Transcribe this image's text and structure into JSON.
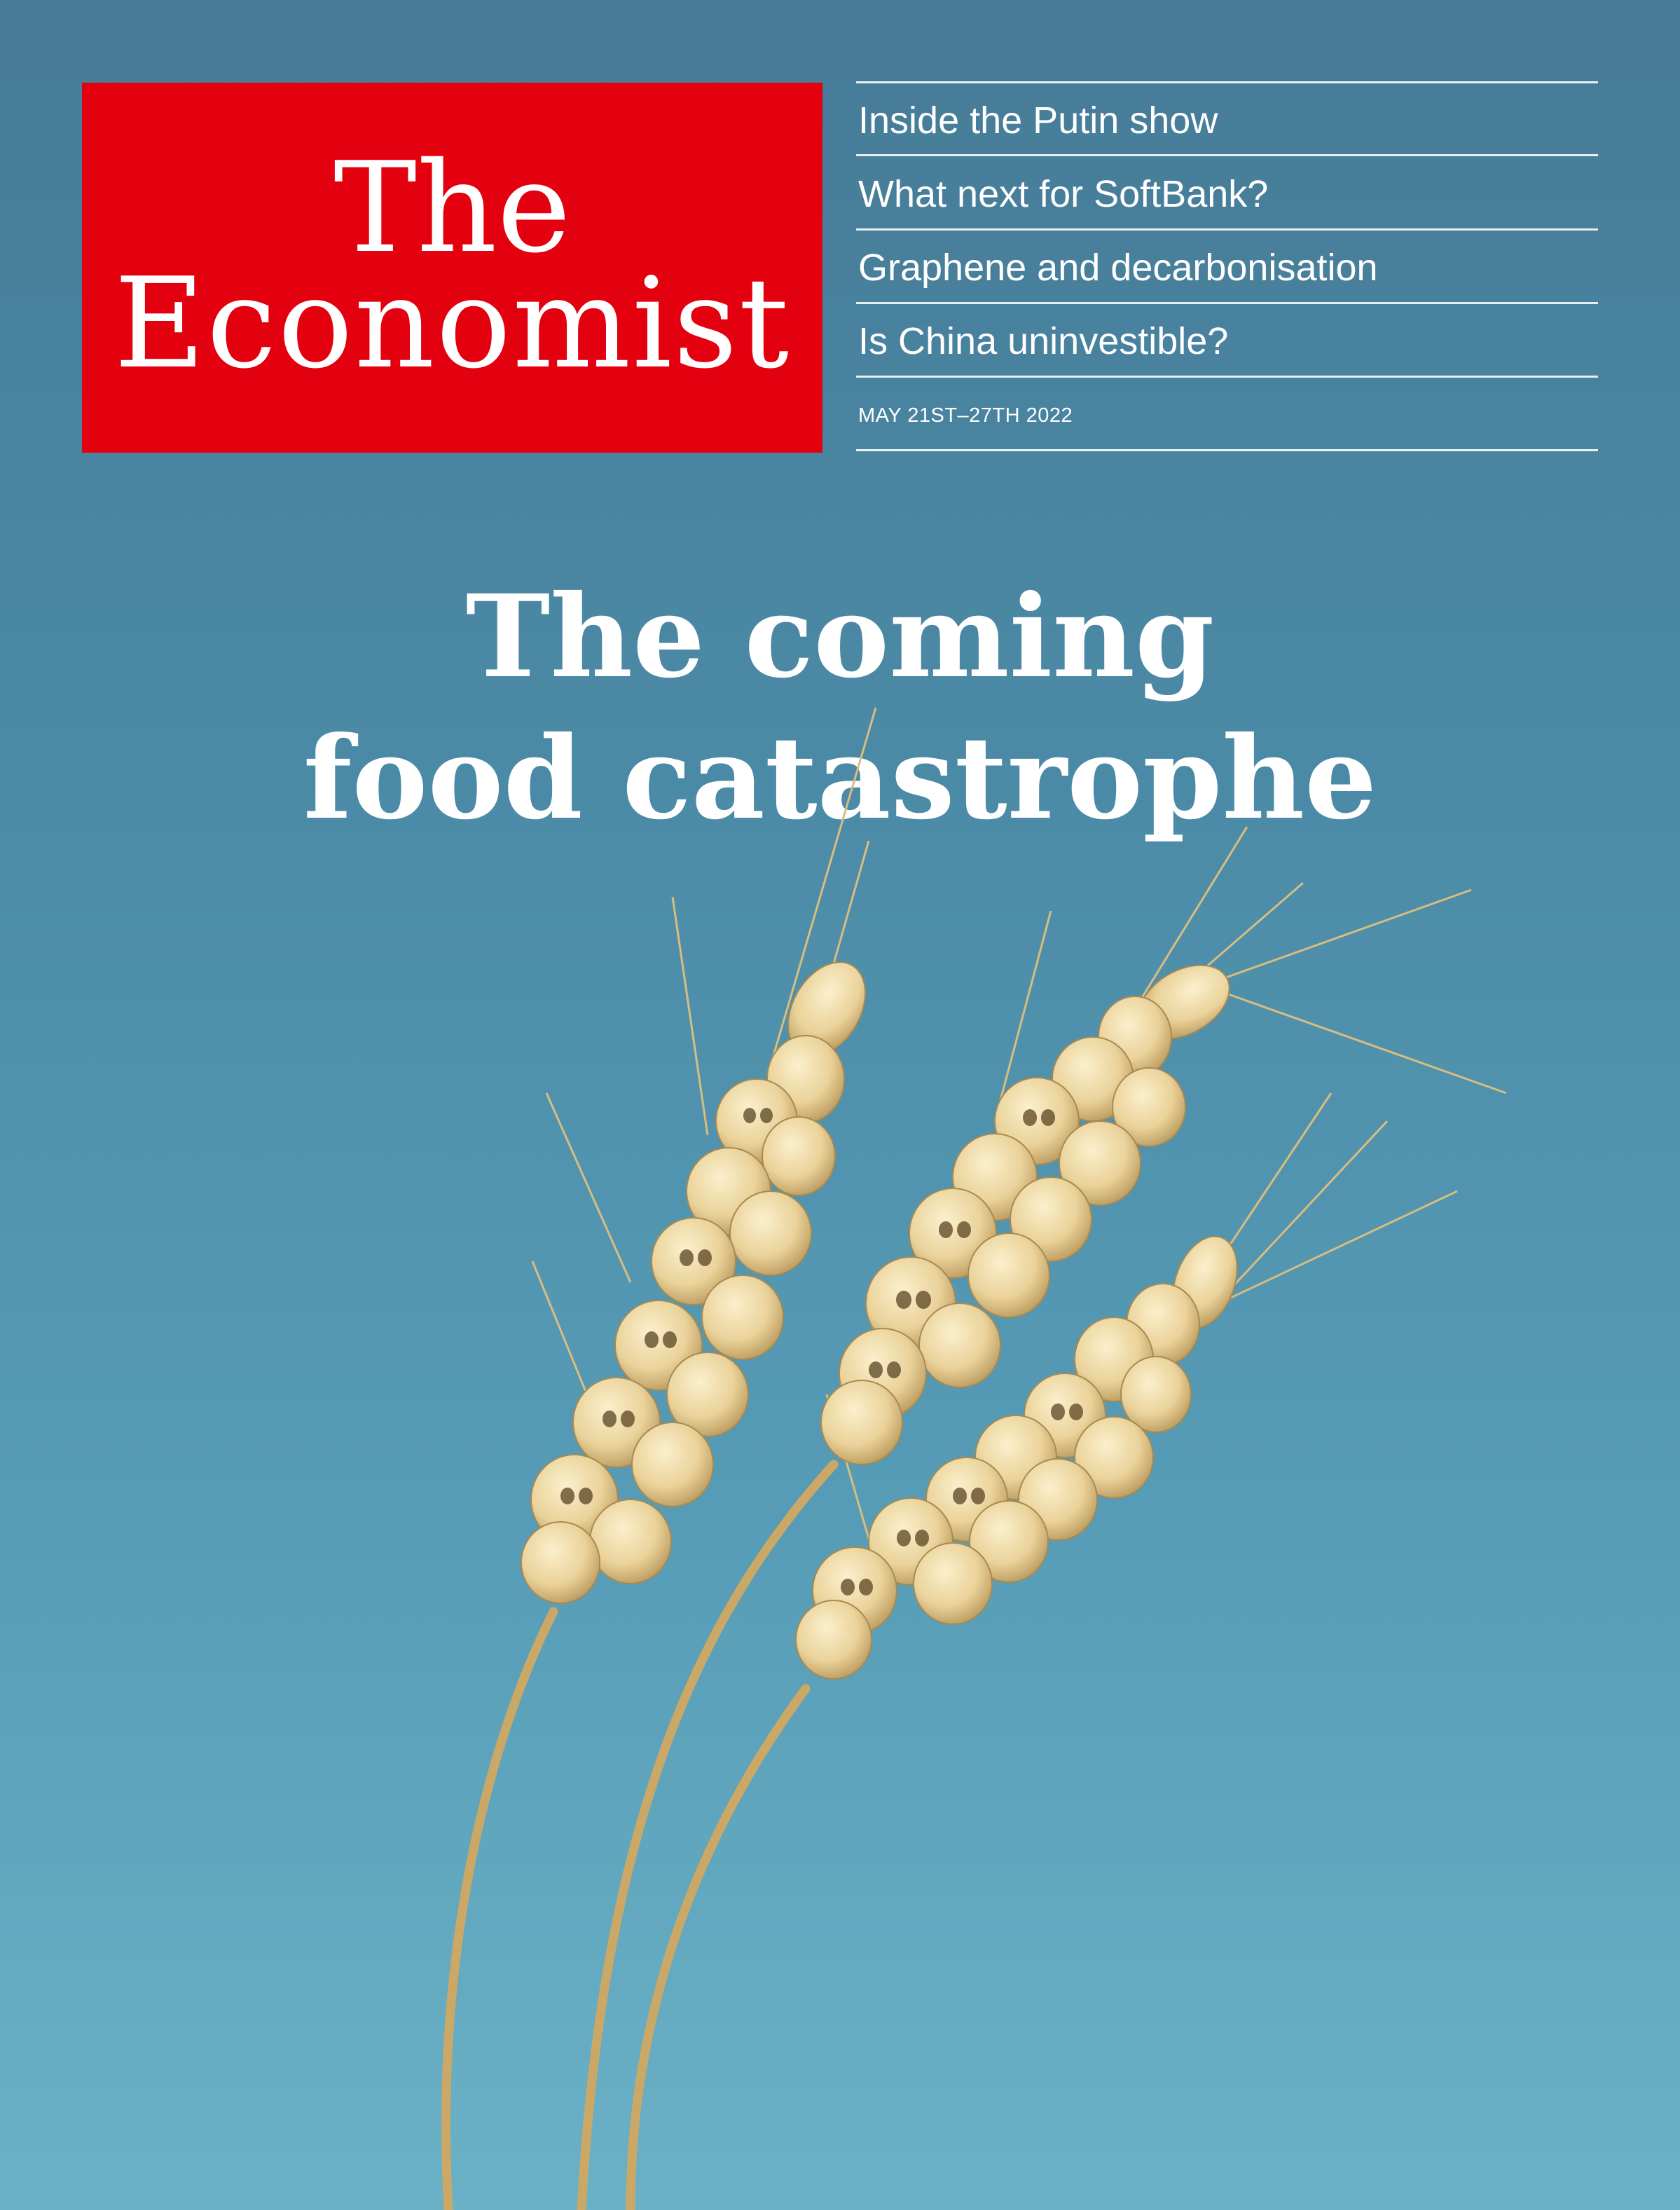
{
  "masthead": {
    "line1": "The",
    "line2": "Economist"
  },
  "teasers": [
    "Inside the Putin show",
    "What next for SoftBank?",
    "Graphene and decarbonisation",
    "Is China uninvestible?"
  ],
  "issue_date": "MAY 21ST–27TH 2022",
  "cover_headline": {
    "line1": "The coming",
    "line2": "food catastrophe"
  },
  "colors": {
    "brand_red": "#e3000f",
    "background_top": "#467b97",
    "background_bottom": "#6bb1c6",
    "wheat": "#ead29a"
  }
}
